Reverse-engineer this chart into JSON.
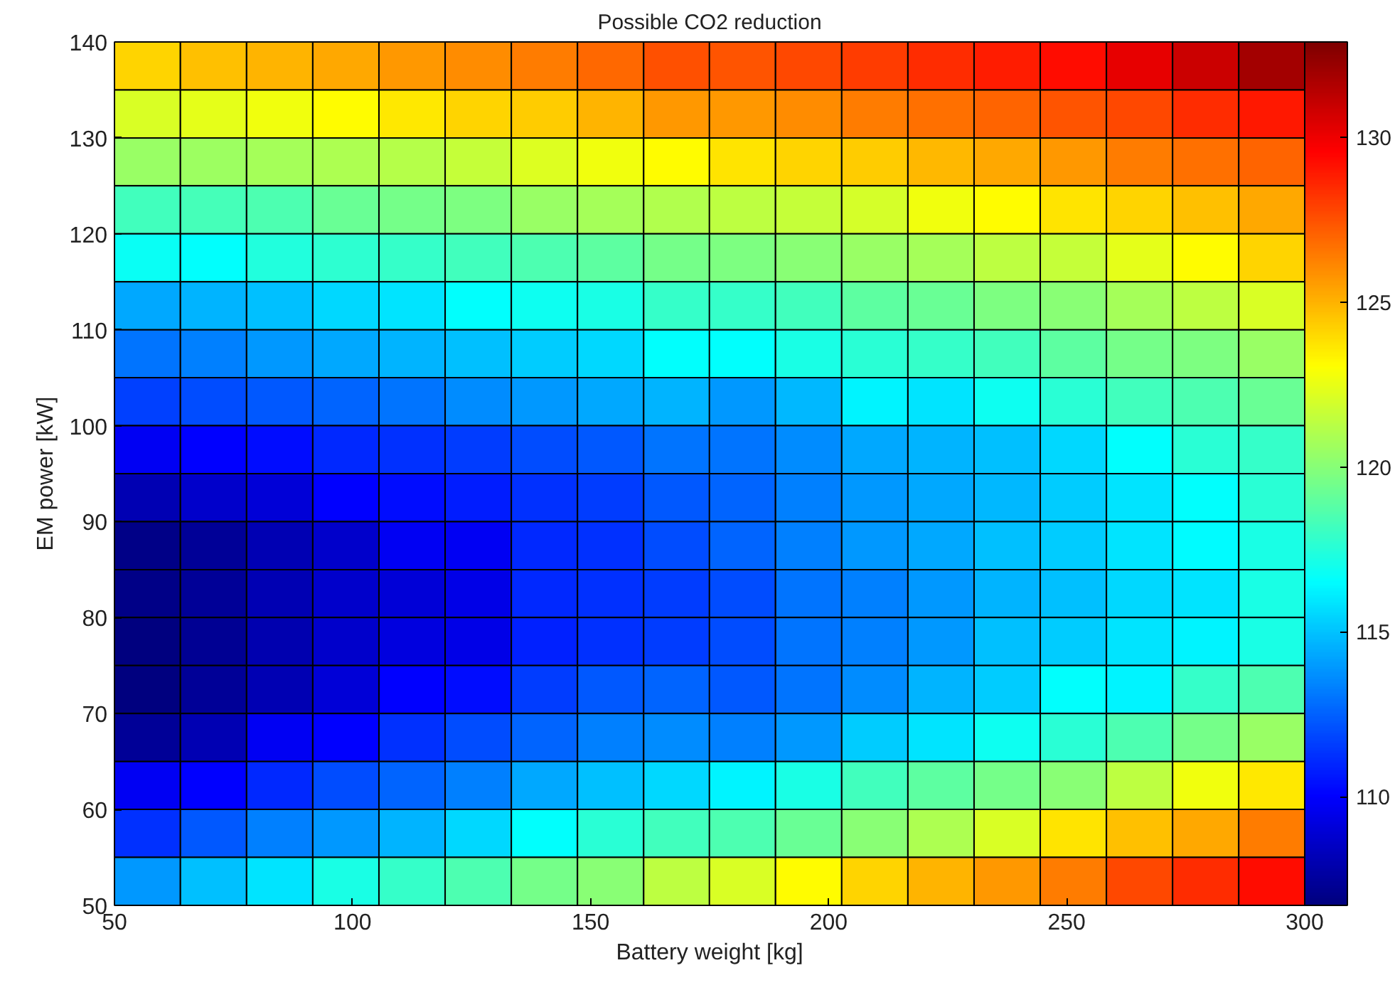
{
  "chart_data": {
    "type": "heatmap",
    "title": "Possible CO2 reduction",
    "xlabel": "Battery weight [kg]",
    "ylabel": "EM power [kW]",
    "x": [
      56.9,
      70.8,
      84.7,
      98.6,
      112.5,
      126.4,
      140.3,
      154.2,
      168.1,
      181.9,
      195.8,
      209.7,
      223.6,
      237.5,
      251.4,
      265.3,
      279.2,
      293.1
    ],
    "y": [
      137.5,
      132.5,
      127.5,
      122.5,
      117.5,
      112.5,
      107.5,
      102.5,
      97.5,
      92.5,
      87.5,
      82.5,
      77.5,
      72.5,
      67.5,
      62.5,
      57.5,
      52.5
    ],
    "cells": [
      [
        124.1,
        124.7,
        125.0,
        125.3,
        125.7,
        126.0,
        126.4,
        126.9,
        127.5,
        127.4,
        127.7,
        128.0,
        128.4,
        128.9,
        129.3,
        130.2,
        130.9,
        131.9
      ],
      [
        122.1,
        122.4,
        122.7,
        123.1,
        123.6,
        124.1,
        124.4,
        125.0,
        125.7,
        125.7,
        126.0,
        126.4,
        126.7,
        127.0,
        127.4,
        127.7,
        128.4,
        129.0
      ],
      [
        120.5,
        120.6,
        120.8,
        121.0,
        121.2,
        121.6,
        122.2,
        122.7,
        123.1,
        123.7,
        124.1,
        124.4,
        124.9,
        125.3,
        125.7,
        126.4,
        126.7,
        127.0
      ],
      [
        118.2,
        118.3,
        118.5,
        119.2,
        119.5,
        119.8,
        120.5,
        120.8,
        121.1,
        121.4,
        121.6,
        122.0,
        122.7,
        123.1,
        123.7,
        124.1,
        124.7,
        125.3
      ],
      [
        116.8,
        116.6,
        117.4,
        117.7,
        117.9,
        118.2,
        118.5,
        118.9,
        119.5,
        119.8,
        120.1,
        120.5,
        120.8,
        121.4,
        121.6,
        122.4,
        123.1,
        124.1
      ],
      [
        114.3,
        114.6,
        114.9,
        115.6,
        115.9,
        116.6,
        116.9,
        117.2,
        117.9,
        117.9,
        118.2,
        118.9,
        119.2,
        119.8,
        120.1,
        120.8,
        121.4,
        122.1
      ],
      [
        113.0,
        113.3,
        113.9,
        114.3,
        114.6,
        114.9,
        115.2,
        115.6,
        116.6,
        116.6,
        117.2,
        117.6,
        117.9,
        118.2,
        118.9,
        119.5,
        119.8,
        120.5
      ],
      [
        111.7,
        112.0,
        112.3,
        112.6,
        113.0,
        113.6,
        113.9,
        114.3,
        114.6,
        113.9,
        114.7,
        116.3,
        115.9,
        116.9,
        117.6,
        118.2,
        118.5,
        119.2
      ],
      [
        109.7,
        110.0,
        110.3,
        111.0,
        111.3,
        111.6,
        112.0,
        112.3,
        113.0,
        113.0,
        113.6,
        114.3,
        114.6,
        114.9,
        115.6,
        116.6,
        117.6,
        117.9
      ],
      [
        108.1,
        108.7,
        109.0,
        110.0,
        110.3,
        110.7,
        111.3,
        111.6,
        112.3,
        112.6,
        113.3,
        113.9,
        114.3,
        114.7,
        115.2,
        115.9,
        116.6,
        117.6
      ],
      [
        107.0,
        107.4,
        108.1,
        108.7,
        109.7,
        109.7,
        111.0,
        111.3,
        112.0,
        112.6,
        113.3,
        113.9,
        114.3,
        114.9,
        115.2,
        115.9,
        116.5,
        117.2
      ],
      [
        107.0,
        107.4,
        108.1,
        108.7,
        109.0,
        109.4,
        111.0,
        111.3,
        111.6,
        112.0,
        113.0,
        113.3,
        113.9,
        114.6,
        114.9,
        115.6,
        115.9,
        117.2
      ],
      [
        106.8,
        107.3,
        108.0,
        108.7,
        109.2,
        109.4,
        110.8,
        111.3,
        111.6,
        112.0,
        113.0,
        113.3,
        113.9,
        114.9,
        115.2,
        115.9,
        116.3,
        117.2
      ],
      [
        106.8,
        107.4,
        108.1,
        109.0,
        110.0,
        110.3,
        111.6,
        112.3,
        112.6,
        112.3,
        113.0,
        113.6,
        114.6,
        115.2,
        116.6,
        116.3,
        117.9,
        118.5
      ],
      [
        107.4,
        108.1,
        109.7,
        110.0,
        111.3,
        112.0,
        112.6,
        113.3,
        113.6,
        113.3,
        113.9,
        115.2,
        115.9,
        116.9,
        117.6,
        118.5,
        119.5,
        120.5
      ],
      [
        109.7,
        110.0,
        111.0,
        112.0,
        112.6,
        113.3,
        114.3,
        114.9,
        115.6,
        116.3,
        117.2,
        118.2,
        118.9,
        119.5,
        120.1,
        121.4,
        122.7,
        123.6
      ],
      [
        111.3,
        112.3,
        113.3,
        113.9,
        114.6,
        115.6,
        116.6,
        117.6,
        118.2,
        118.5,
        119.2,
        120.1,
        121.0,
        122.1,
        123.7,
        124.7,
        125.3,
        126.4
      ],
      [
        113.9,
        114.9,
        115.9,
        117.2,
        117.9,
        118.5,
        119.5,
        120.1,
        121.4,
        122.1,
        123.1,
        124.1,
        125.0,
        125.7,
        126.4,
        127.7,
        128.4,
        129.3
      ]
    ],
    "clim": [
      106.7,
      132.9
    ],
    "cticks": [
      110,
      115,
      120,
      125,
      130
    ],
    "xlim": [
      50,
      300
    ],
    "xticks": [
      50,
      100,
      150,
      200,
      250,
      300
    ],
    "ylim": [
      50,
      140
    ],
    "yticks": [
      50,
      60,
      70,
      80,
      90,
      100,
      110,
      120,
      130,
      140
    ]
  }
}
